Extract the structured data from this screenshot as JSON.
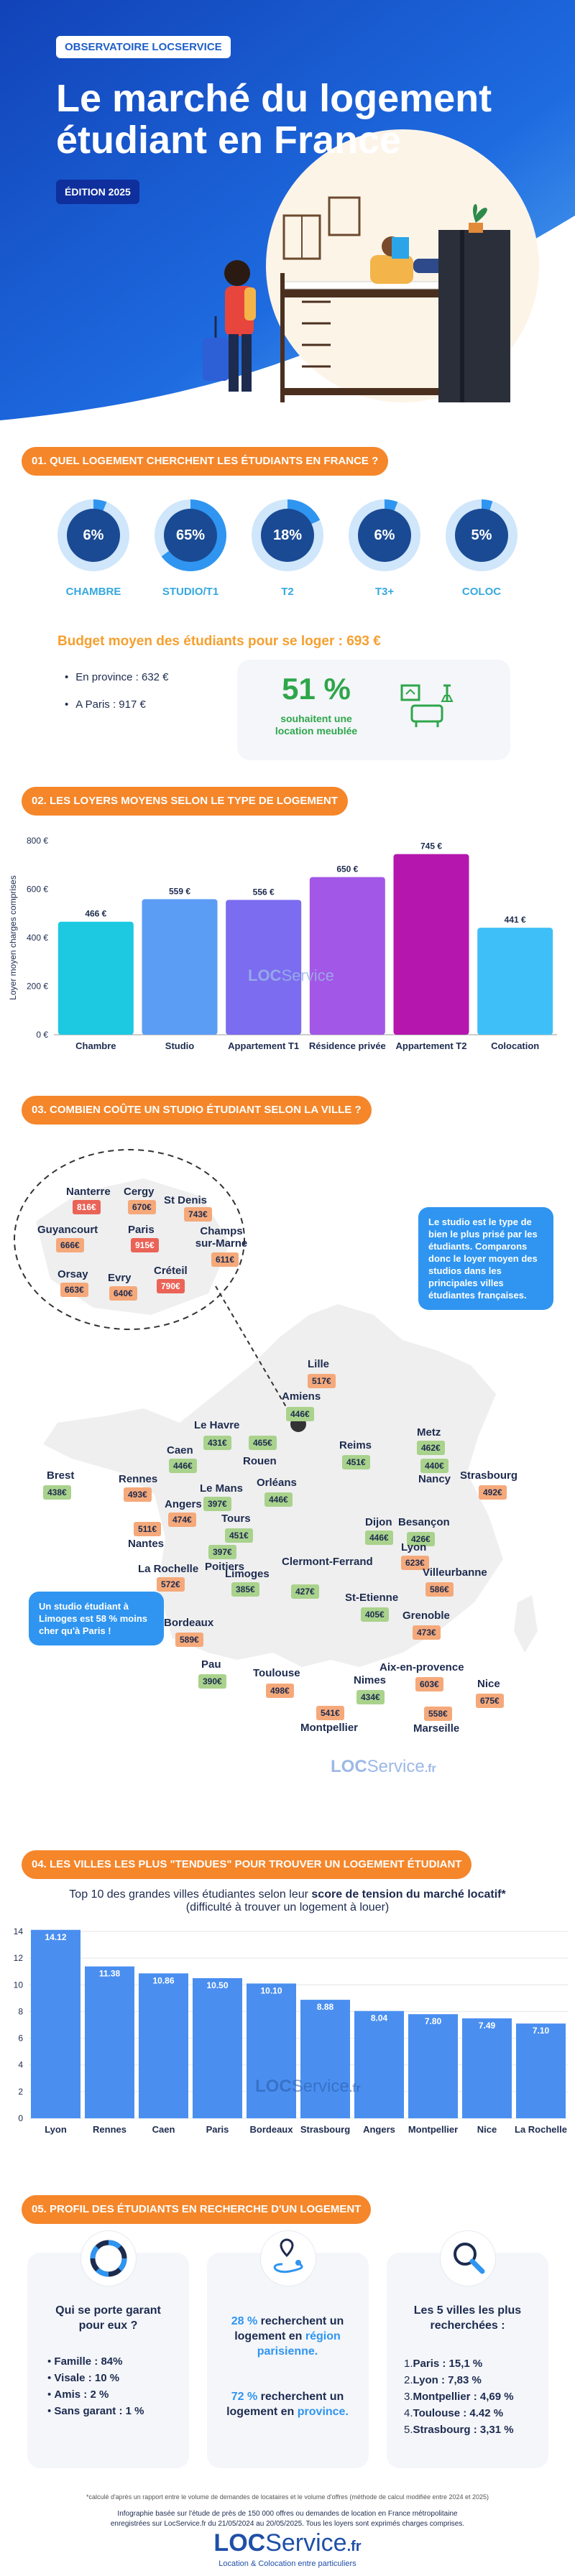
{
  "header": {
    "tag": "OBSERVATOIRE LOCSERVICE",
    "title_line1": "Le marché du logement",
    "title_line2": "étudiant en France",
    "edition": "ÉDITION 2025"
  },
  "section1": {
    "title": "01. QUEL LOGEMENT CHERCHENT LES ÉTUDIANTS EN FRANCE ?",
    "rings": [
      {
        "label": "CHAMBRE",
        "value": "6%",
        "pct": 6
      },
      {
        "label": "STUDIO/T1",
        "value": "65%",
        "pct": 65
      },
      {
        "label": "T2",
        "value": "18%",
        "pct": 18
      },
      {
        "label": "T3+",
        "value": "6%",
        "pct": 6
      },
      {
        "label": "COLOC",
        "value": "5%",
        "pct": 5
      }
    ],
    "budget_title": "Budget moyen des étudiants pour se loger : 693 €",
    "province": "En province : 632 €",
    "paris": "A Paris : 917 €",
    "furnished_pct": "51 %",
    "furnished_line1": "souhaitent une",
    "furnished_line2": "location meublée"
  },
  "section2": {
    "title": "02. LES LOYERS MOYENS SELON LE TYPE DE LOGEMENT",
    "watermark_loc": "LOC",
    "watermark_service": "Service",
    "chart_data": {
      "type": "bar",
      "ylabel": "Loyer moyen charges comprises",
      "ylim": [
        0,
        800
      ],
      "yticks": [
        "0 €",
        "200 €",
        "400 €",
        "600 €",
        "800 €"
      ],
      "categories": [
        "Chambre",
        "Studio",
        "Appartement T1",
        "Résidence privée",
        "Appartement T2",
        "Colocation"
      ],
      "values": [
        466,
        559,
        556,
        650,
        745,
        441
      ],
      "value_labels": [
        "466 €",
        "559 €",
        "556 €",
        "650 €",
        "745 €",
        "441 €"
      ],
      "colors": [
        "#1cc9e1",
        "#5b9cf5",
        "#7c6cf0",
        "#a257e6",
        "#b516ad",
        "#3fbff7"
      ]
    }
  },
  "section3": {
    "title": "03. COMBIEN COÛTE UN STUDIO ÉTUDIANT SELON LA VILLE ?",
    "info_right": "Le studio est le type de bien le plus prisé par les étudiants. Comparons donc le loyer moyen des studios dans les principales villes étudiantes françaises.",
    "info_left": "Un studio étudiant à Limoges est 58 % moins cher qu'à Paris !",
    "idf": [
      {
        "city": "Nanterre",
        "price": "816€",
        "tone": "red"
      },
      {
        "city": "Cergy",
        "price": "670€",
        "tone": "orange"
      },
      {
        "city": "St Denis",
        "price": "743€",
        "tone": "orange"
      },
      {
        "city": "Guyancourt",
        "price": "666€",
        "tone": "orange"
      },
      {
        "city": "Paris",
        "price": "915€",
        "tone": "red"
      },
      {
        "city": "Champs sur-Marne",
        "price": "611€",
        "tone": "orange"
      },
      {
        "city": "Orsay",
        "price": "663€",
        "tone": "orange"
      },
      {
        "city": "Evry",
        "price": "640€",
        "tone": "orange"
      },
      {
        "city": "Créteil",
        "price": "790€",
        "tone": "red"
      }
    ],
    "cities": [
      {
        "city": "Lille",
        "price": "517€",
        "tone": "orange"
      },
      {
        "city": "Amiens",
        "price": "446€",
        "tone": "green"
      },
      {
        "city": "Le Havre",
        "price": "431€",
        "tone": "green"
      },
      {
        "city": "Caen",
        "price": "446€",
        "tone": "green"
      },
      {
        "city": "Rouen",
        "price": "465€",
        "tone": "green"
      },
      {
        "city": "Reims",
        "price": "451€",
        "tone": "green"
      },
      {
        "city": "Metz",
        "price": "462€",
        "tone": "green"
      },
      {
        "city": "Brest",
        "price": "438€",
        "tone": "green"
      },
      {
        "city": "Rennes",
        "price": "493€",
        "tone": "orange"
      },
      {
        "city": "Le Mans",
        "price": "397€",
        "tone": "green"
      },
      {
        "city": "Angers",
        "price": "474€",
        "tone": "orange"
      },
      {
        "city": "Orléans",
        "price": "446€",
        "tone": "green"
      },
      {
        "city": "Nancy",
        "price": "440€",
        "tone": "green"
      },
      {
        "city": "Strasbourg",
        "price": "492€",
        "tone": "orange"
      },
      {
        "city": "Tours",
        "price": "451€",
        "tone": "green"
      },
      {
        "city": "Nantes",
        "price": "511€",
        "tone": "orange"
      },
      {
        "city": "Dijon",
        "price": "446€",
        "tone": "green"
      },
      {
        "city": "Besançon",
        "price": "426€",
        "tone": "green"
      },
      {
        "city": "Poitiers",
        "price": "397€",
        "tone": "green"
      },
      {
        "city": "La Rochelle",
        "price": "572€",
        "tone": "orange"
      },
      {
        "city": "Limoges",
        "price": "385€",
        "tone": "green"
      },
      {
        "city": "Clermont-Ferrand",
        "price": "427€",
        "tone": "green"
      },
      {
        "city": "Lyon",
        "price": "623€",
        "tone": "orange"
      },
      {
        "city": "Villeurbanne",
        "price": "586€",
        "tone": "orange"
      },
      {
        "city": "St-Etienne",
        "price": "405€",
        "tone": "green"
      },
      {
        "city": "Grenoble",
        "price": "473€",
        "tone": "orange"
      },
      {
        "city": "Bordeaux",
        "price": "589€",
        "tone": "orange"
      },
      {
        "city": "Pau",
        "price": "390€",
        "tone": "green"
      },
      {
        "city": "Toulouse",
        "price": "498€",
        "tone": "orange"
      },
      {
        "city": "Nimes",
        "price": "434€",
        "tone": "green"
      },
      {
        "city": "Aix-en-provence",
        "price": "603€",
        "tone": "orange"
      },
      {
        "city": "Nice",
        "price": "675€",
        "tone": "orange"
      },
      {
        "city": "Montpellier",
        "price": "541€",
        "tone": "orange"
      },
      {
        "city": "Marseille",
        "price": "558€",
        "tone": "orange"
      }
    ],
    "watermark_loc": "LOC",
    "watermark_service": "Service",
    "watermark_fr": ".fr"
  },
  "section4": {
    "title": "04. LES VILLES LES PLUS \"TENDUES\" POUR TROUVER UN LOGEMENT ÉTUDIANT",
    "subtitle_pre": "Top 10 des grandes villes étudiantes selon leur ",
    "subtitle_bold": "score de tension du marché locatif*",
    "subtitle_line2": "(difficulté à trouver un logement à louer)",
    "watermark_loc": "LOC",
    "watermark_service": "Service",
    "watermark_fr": ".fr",
    "chart_data": {
      "type": "bar",
      "ylim": [
        0,
        14
      ],
      "yticks": [
        "0",
        "2",
        "4",
        "6",
        "8",
        "10",
        "12",
        "14"
      ],
      "categories": [
        "Lyon",
        "Rennes",
        "Caen",
        "Paris",
        "Bordeaux",
        "Strasbourg",
        "Angers",
        "Montpellier",
        "Nice",
        "La Rochelle"
      ],
      "values": [
        14.12,
        11.38,
        10.86,
        10.5,
        10.1,
        8.88,
        8.04,
        7.8,
        7.49,
        7.1
      ],
      "value_labels": [
        "14.12",
        "11.38",
        "10.86",
        "10.50",
        "10.10",
        "8.88",
        "8.04",
        "7.80",
        "7.49",
        "7.10"
      ]
    }
  },
  "section5": {
    "title": "05. PROFIL DES ÉTUDIANTS EN RECHERCHE D'UN LOGEMENT",
    "card1": {
      "title": "Qui se porte garant pour eux ?",
      "items": [
        {
          "k": "Famille",
          "v": " : 84%"
        },
        {
          "k": "Visale",
          "v": " : 10 %"
        },
        {
          "k": "Amis",
          "v": " : 2 %"
        },
        {
          "k": "Sans garant",
          "v": " : 1 %"
        }
      ]
    },
    "card2": {
      "p1_a": "28 % ",
      "p1_b": "recherchent un logement en ",
      "p1_c": "région parisienne.",
      "p2_a": "72 % ",
      "p2_b": "recherchent un logement en ",
      "p2_c": "province."
    },
    "card3": {
      "title": "Les 5 villes les plus recherchées :",
      "items": [
        {
          "n": "1.",
          "k": "Paris",
          "v": " : 15,1 %"
        },
        {
          "n": "2.",
          "k": "Lyon",
          "v": " : 7,83 %"
        },
        {
          "n": "3.",
          "k": "Montpellier",
          "v": " : 4,69 %"
        },
        {
          "n": "4.",
          "k": "Toulouse",
          "v": " : 4.42 %"
        },
        {
          "n": "5.",
          "k": "Strasbourg",
          "v": " : 3,31 %"
        }
      ]
    }
  },
  "footer": {
    "note": "*calculé d'après un rapport entre le volume de demandes de locataires et le volume d'offres (méthode de calcul modifiée entre 2024 et 2025)",
    "source1": "Infographie basée sur l'étude de près de 150 000 offres ou demandes de location en France métropolitaine",
    "source2": "enregistrées sur LocService.fr du 21/05/2024 au 20/05/2025. Tous les loyers sont exprimés charges comprises.",
    "logo_loc": "LOC",
    "logo_service": "Service",
    "logo_fr": ".fr",
    "logo_tagline": "Location & Colocation entre particuliers"
  }
}
